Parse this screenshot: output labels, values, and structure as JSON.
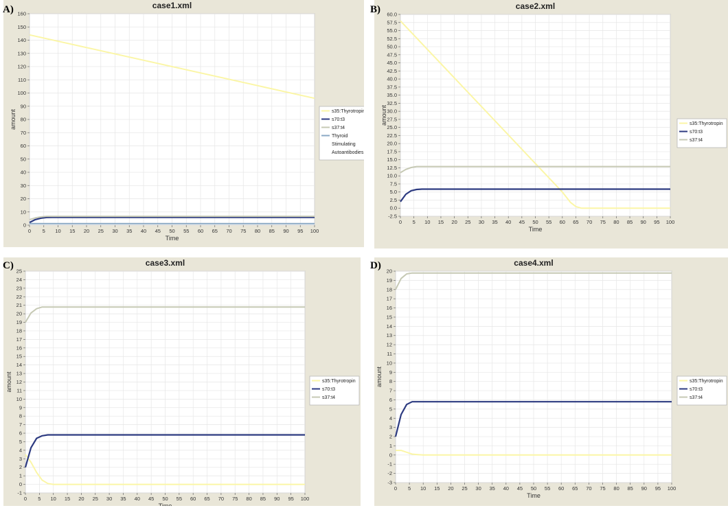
{
  "colors": {
    "panel_bg": "#e9e6d8",
    "plot_bg": "#ffffff",
    "grid": "#e6e6e6",
    "thyrotropin": "#fbf6a6",
    "t3": "#2c3a80",
    "t4": "#c6c9b4",
    "tsa": "#8aa8c4"
  },
  "chart_data": [
    {
      "type": "line",
      "panel_letter": "A)",
      "title": "case1.xml",
      "xlabel": "Time",
      "ylabel": "amount",
      "xlim": [
        0,
        100
      ],
      "ylim": [
        0,
        160
      ],
      "x_ticks": [
        0,
        5,
        10,
        15,
        20,
        25,
        30,
        35,
        40,
        45,
        50,
        55,
        60,
        65,
        70,
        75,
        80,
        85,
        90,
        95,
        100
      ],
      "y_ticks": [
        0,
        10,
        20,
        30,
        40,
        50,
        60,
        70,
        80,
        90,
        100,
        110,
        120,
        130,
        140,
        150,
        160
      ],
      "y_tick_labels": [
        "0",
        "10",
        "20",
        "30",
        "40",
        "50",
        "60",
        "70",
        "80",
        "90",
        "100",
        "110",
        "120",
        "130",
        "140",
        "150",
        "160"
      ],
      "grid": true,
      "legend": "right",
      "series": [
        {
          "name": "s35:Thyrotropin",
          "color_key": "thyrotropin",
          "x": [
            0,
            100
          ],
          "y": [
            144,
            96
          ]
        },
        {
          "name": "s70:t3",
          "color_key": "t3",
          "x": [
            0,
            2,
            4,
            6,
            8,
            10,
            100
          ],
          "y": [
            2,
            4.2,
            5.3,
            5.8,
            5.9,
            5.9,
            5.9
          ]
        },
        {
          "name": "s37:t4",
          "color_key": "t4",
          "x": [
            0,
            2,
            4,
            6,
            100
          ],
          "y": [
            4.2,
            5.5,
            6.3,
            6.7,
            6.7
          ]
        },
        {
          "name": "Thyroid Stimulating Autoantibodies",
          "color_key": "tsa",
          "x": [
            0,
            100
          ],
          "y": [
            1.2,
            1.2
          ]
        }
      ],
      "legend_lines": [
        [
          "s35:Thyrotropin"
        ],
        [
          "s70:t3"
        ],
        [
          "s37:t4"
        ],
        [
          "Thyroid",
          "Stimulating",
          "Autoantibodies"
        ]
      ]
    },
    {
      "type": "line",
      "panel_letter": "B)",
      "title": "case2.xml",
      "xlabel": "Time",
      "ylabel": "amount",
      "xlim": [
        0,
        100
      ],
      "ylim": [
        -2.5,
        60
      ],
      "x_ticks": [
        0,
        5,
        10,
        15,
        20,
        25,
        30,
        35,
        40,
        45,
        50,
        55,
        60,
        65,
        70,
        75,
        80,
        85,
        90,
        95,
        100
      ],
      "y_ticks": [
        -2.5,
        0,
        2.5,
        5,
        7.5,
        10,
        12.5,
        15,
        17.5,
        20,
        22.5,
        25,
        27.5,
        30,
        32.5,
        35,
        37.5,
        40,
        42.5,
        45,
        47.5,
        50,
        52.5,
        55,
        57.5,
        60
      ],
      "y_tick_labels": [
        "-2.5",
        "0.0",
        "2.5",
        "5.0",
        "7.5",
        "10.0",
        "12.5",
        "15.0",
        "17.5",
        "20.0",
        "22.5",
        "25.0",
        "27.5",
        "30.0",
        "32.5",
        "35.0",
        "37.5",
        "40.0",
        "42.5",
        "45.0",
        "47.5",
        "50.0",
        "52.5",
        "55.0",
        "57.5",
        "60.0"
      ],
      "grid": true,
      "legend": "right",
      "series": [
        {
          "name": "s35:Thyrotropin",
          "color_key": "thyrotropin",
          "x": [
            0,
            60,
            63,
            65,
            67,
            100
          ],
          "y": [
            58,
            5,
            1.8,
            0.5,
            0,
            0
          ]
        },
        {
          "name": "s70:t3",
          "color_key": "t3",
          "x": [
            0,
            2,
            4,
            6,
            8,
            100
          ],
          "y": [
            2,
            4.3,
            5.4,
            5.8,
            5.9,
            5.9
          ]
        },
        {
          "name": "s37:t4",
          "color_key": "t4",
          "x": [
            0,
            2,
            4,
            6,
            100
          ],
          "y": [
            11,
            12,
            12.6,
            12.9,
            12.9
          ]
        }
      ],
      "legend_lines": [
        [
          "s35:Thyrotropin"
        ],
        [
          "s70:t3"
        ],
        [
          "s37:t4"
        ]
      ]
    },
    {
      "type": "line",
      "panel_letter": "C)",
      "title": "case3.xml",
      "xlabel": "Time",
      "ylabel": "amount",
      "xlim": [
        0,
        100
      ],
      "ylim": [
        -1,
        25
      ],
      "x_ticks": [
        0,
        5,
        10,
        15,
        20,
        25,
        30,
        35,
        40,
        45,
        50,
        55,
        60,
        65,
        70,
        75,
        80,
        85,
        90,
        95,
        100
      ],
      "y_ticks": [
        -1,
        0,
        1,
        2,
        3,
        4,
        5,
        6,
        7,
        8,
        9,
        10,
        11,
        12,
        13,
        14,
        15,
        16,
        17,
        18,
        19,
        20,
        21,
        22,
        23,
        24,
        25
      ],
      "y_tick_labels": [
        "-1",
        "0",
        "1",
        "2",
        "3",
        "4",
        "5",
        "6",
        "7",
        "8",
        "9",
        "10",
        "11",
        "12",
        "13",
        "14",
        "15",
        "16",
        "17",
        "18",
        "19",
        "20",
        "21",
        "22",
        "23",
        "24",
        "25"
      ],
      "grid": true,
      "legend": "right",
      "series": [
        {
          "name": "s35:Thyrotropin",
          "color_key": "thyrotropin",
          "x": [
            0,
            2,
            4,
            6,
            8,
            10,
            100
          ],
          "y": [
            3.5,
            2.6,
            1.4,
            0.5,
            0.1,
            0,
            0
          ]
        },
        {
          "name": "s70:t3",
          "color_key": "t3",
          "x": [
            0,
            2,
            4,
            6,
            8,
            10,
            100
          ],
          "y": [
            2,
            4.3,
            5.4,
            5.7,
            5.8,
            5.8,
            5.8
          ]
        },
        {
          "name": "s37:t4",
          "color_key": "t4",
          "x": [
            0,
            2,
            4,
            6,
            8,
            100
          ],
          "y": [
            19,
            20.1,
            20.6,
            20.8,
            20.8,
            20.8
          ]
        }
      ],
      "legend_lines": [
        [
          "s35:Thyrotropin"
        ],
        [
          "s70:t3"
        ],
        [
          "s37:t4"
        ]
      ]
    },
    {
      "type": "line",
      "panel_letter": "D)",
      "title": "case4.xml",
      "xlabel": "Time",
      "ylabel": "amount",
      "xlim": [
        0,
        100
      ],
      "ylim": [
        -3,
        20
      ],
      "x_ticks": [
        0,
        5,
        10,
        15,
        20,
        25,
        30,
        35,
        40,
        45,
        50,
        55,
        60,
        65,
        70,
        75,
        80,
        85,
        90,
        95,
        100
      ],
      "y_ticks": [
        -3,
        -2,
        -1,
        0,
        1,
        2,
        3,
        4,
        5,
        6,
        7,
        8,
        9,
        10,
        11,
        12,
        13,
        14,
        15,
        16,
        17,
        18,
        19,
        20
      ],
      "y_tick_labels": [
        "-3",
        "-2",
        "-1",
        "0",
        "1",
        "2",
        "3",
        "4",
        "5",
        "6",
        "7",
        "8",
        "9",
        "10",
        "11",
        "12",
        "13",
        "14",
        "15",
        "16",
        "17",
        "18",
        "19",
        "20"
      ],
      "grid": true,
      "legend": "right",
      "series": [
        {
          "name": "s35:Thyrotropin",
          "color_key": "thyrotropin",
          "x": [
            0,
            2,
            4,
            6,
            8,
            10,
            100
          ],
          "y": [
            0.5,
            0.5,
            0.3,
            0.1,
            0.05,
            0,
            0
          ]
        },
        {
          "name": "s70:t3",
          "color_key": "t3",
          "x": [
            0,
            2,
            4,
            6,
            8,
            100
          ],
          "y": [
            2,
            4.4,
            5.5,
            5.8,
            5.8,
            5.8
          ]
        },
        {
          "name": "s37:t4",
          "color_key": "t4",
          "x": [
            0,
            2,
            4,
            6,
            100
          ],
          "y": [
            18,
            19.2,
            19.7,
            19.8,
            19.8
          ]
        }
      ],
      "legend_lines": [
        [
          "s35:Thyrotropin"
        ],
        [
          "s70:t3"
        ],
        [
          "s37:t4"
        ]
      ]
    }
  ]
}
